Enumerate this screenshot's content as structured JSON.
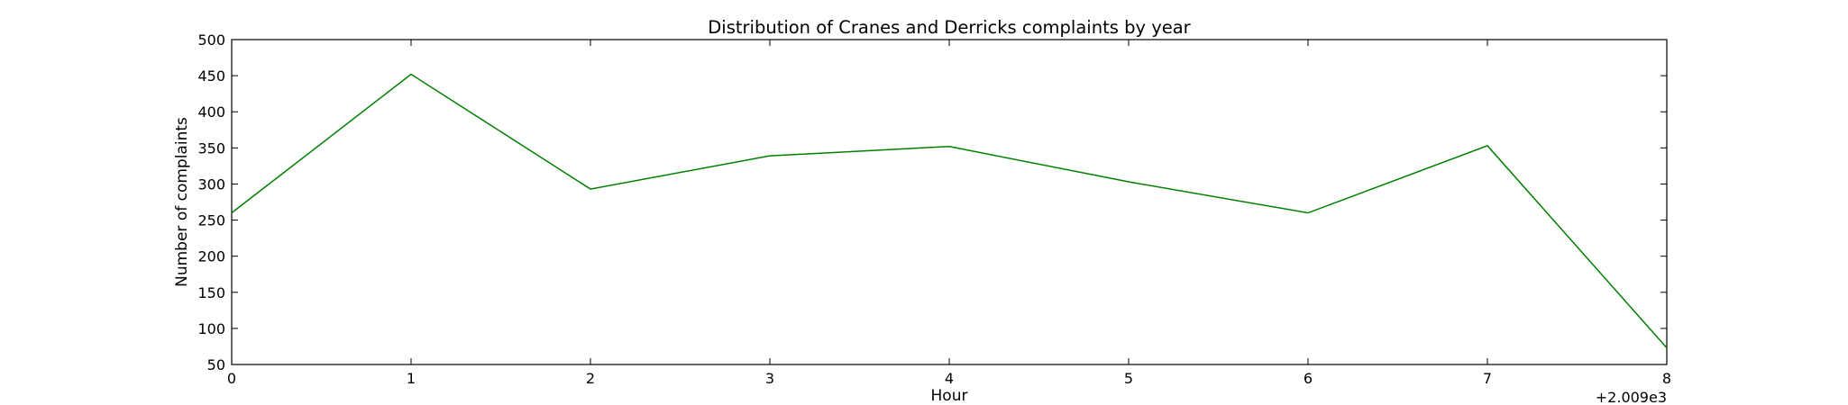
{
  "chart_data": {
    "type": "line",
    "title": "Distribution of  Cranes and Derricks complaints by year",
    "xlabel": "Hour",
    "ylabel": "Number of complaints",
    "x_offset_label": "+2.009e3",
    "xlim": [
      0,
      8
    ],
    "ylim": [
      50,
      500
    ],
    "x_ticks": [
      0,
      1,
      2,
      3,
      4,
      5,
      6,
      7,
      8
    ],
    "y_ticks": [
      50,
      100,
      150,
      200,
      250,
      300,
      350,
      400,
      450,
      500
    ],
    "grid": false,
    "legend": "none",
    "series": [
      {
        "color": "#008000",
        "x": [
          0,
          1,
          2,
          3,
          4,
          5,
          6,
          7,
          8
        ],
        "y": [
          260,
          452,
          293,
          339,
          352,
          303,
          260,
          353,
          73
        ]
      }
    ]
  }
}
